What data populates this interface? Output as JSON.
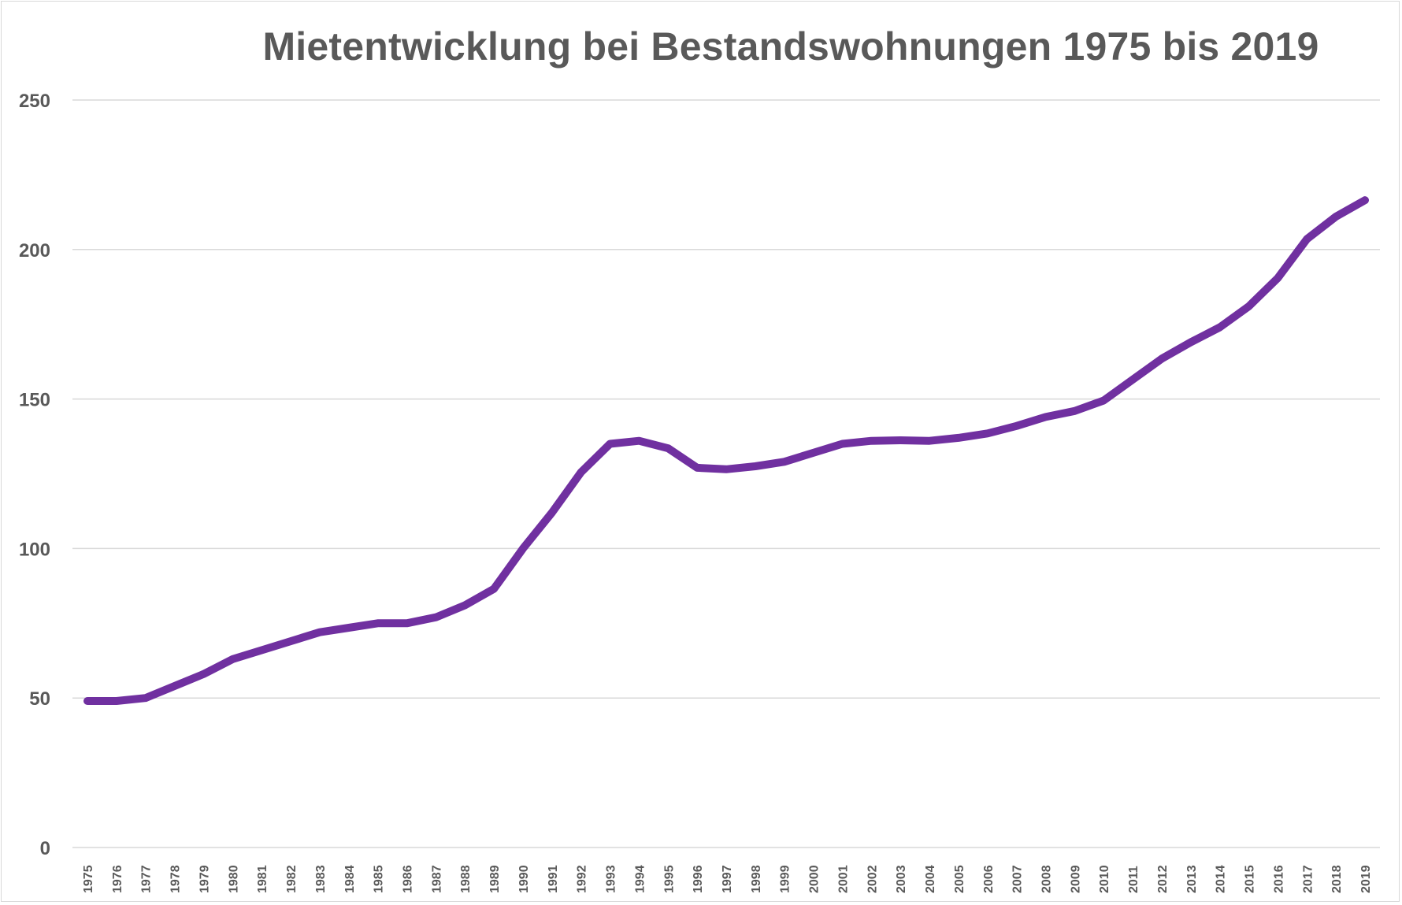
{
  "chart_data": {
    "type": "line",
    "title": "Mietentwicklung bei Bestandswohnungen 1975 bis 2019",
    "xlabel": "",
    "ylabel": "",
    "ylim": [
      0,
      250
    ],
    "yticks": [
      "0",
      "50",
      "100",
      "150",
      "200",
      "250"
    ],
    "grid": true,
    "legend": "none",
    "categories": [
      "1975",
      "1976",
      "1977",
      "1978",
      "1979",
      "1980",
      "1981",
      "1982",
      "1983",
      "1984",
      "1985",
      "1986",
      "1987",
      "1988",
      "1989",
      "1990",
      "1991",
      "1992",
      "1993",
      "1994",
      "1995",
      "1996",
      "1997",
      "1998",
      "1999",
      "2000",
      "2001",
      "2002",
      "2003",
      "2004",
      "2005",
      "2006",
      "2007",
      "2008",
      "2009",
      "2010",
      "2011",
      "2012",
      "2013",
      "2014",
      "2015",
      "2016",
      "2017",
      "2018",
      "2019"
    ],
    "series": [
      {
        "color": "#7030a0",
        "values": [
          49,
          49,
          50,
          54,
          58,
          63,
          66,
          69,
          72,
          73.5,
          75,
          75,
          77,
          81,
          86.5,
          100,
          112,
          125.5,
          135,
          136,
          133.5,
          127,
          126.5,
          127.5,
          129,
          132,
          135,
          136,
          136.2,
          136,
          137,
          138.5,
          141,
          144,
          146,
          149.5,
          156.5,
          163.5,
          169,
          174,
          181,
          190.5,
          203.5,
          211,
          216.5
        ]
      }
    ]
  }
}
